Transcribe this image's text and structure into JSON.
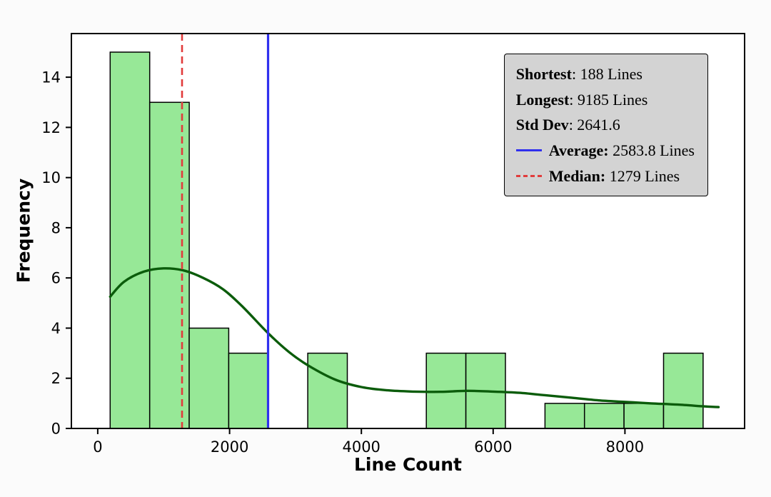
{
  "chart_data": {
    "type": "bar",
    "subtype": "histogram-with-kde",
    "title": "",
    "xlabel": "Line Count",
    "ylabel": "Frequency",
    "xlim": [
      -400,
      9815
    ],
    "ylim": [
      0,
      15.74
    ],
    "x_ticks": [
      0,
      2000,
      4000,
      6000,
      8000
    ],
    "y_ticks": [
      0,
      2,
      4,
      6,
      8,
      10,
      12,
      14
    ],
    "grid": false,
    "legend_position": "upper right",
    "bin_edges": [
      188.0,
      787.8,
      1387.6,
      1987.4,
      2587.2,
      3187.0,
      3786.8,
      4386.6,
      4986.4,
      5586.2,
      6186.0,
      6785.8,
      7385.6,
      7985.4,
      8585.2,
      9185.0
    ],
    "counts": [
      15,
      13,
      4,
      3,
      0,
      3,
      0,
      0,
      3,
      3,
      0,
      1,
      1,
      1,
      3
    ],
    "bar_fill": "#97e897",
    "bar_edge": "#000000",
    "kde_color": "#0b5c0b",
    "kde_points": [
      [
        188,
        5.25
      ],
      [
        400,
        5.85
      ],
      [
        700,
        6.25
      ],
      [
        1000,
        6.38
      ],
      [
        1300,
        6.3
      ],
      [
        1600,
        6.0
      ],
      [
        1900,
        5.55
      ],
      [
        2200,
        4.85
      ],
      [
        2584,
        3.8
      ],
      [
        2900,
        3.05
      ],
      [
        3200,
        2.5
      ],
      [
        3600,
        1.95
      ],
      [
        4000,
        1.65
      ],
      [
        4400,
        1.52
      ],
      [
        4800,
        1.47
      ],
      [
        5200,
        1.46
      ],
      [
        5600,
        1.5
      ],
      [
        6000,
        1.47
      ],
      [
        6400,
        1.42
      ],
      [
        6800,
        1.32
      ],
      [
        7200,
        1.22
      ],
      [
        7600,
        1.12
      ],
      [
        8000,
        1.06
      ],
      [
        8400,
        1.0
      ],
      [
        8800,
        0.95
      ],
      [
        9200,
        0.88
      ],
      [
        9420,
        0.85
      ]
    ],
    "average": {
      "value": 2583.8,
      "color": "#3030ee"
    },
    "median": {
      "value": 1279,
      "color": "#e13c3c"
    },
    "stats": {
      "shortest_lines": 188,
      "longest_lines": 9185,
      "std_dev": 2641.6,
      "average_lines": 2583.8,
      "median_lines": 1279
    }
  },
  "legend": {
    "background": "#d3d3d3",
    "border_color": "#000000",
    "entries": [
      {
        "bold": "Shortest",
        "rest": ": 188 Lines",
        "swatch": null
      },
      {
        "bold": "Longest",
        "rest": ": 9185 Lines",
        "swatch": null
      },
      {
        "bold": "Std Dev",
        "rest": ": 2641.6",
        "swatch": null
      },
      {
        "bold": "Average:",
        "rest": " 2583.8 Lines",
        "swatch": {
          "style": "solid",
          "color": "#3030ee",
          "name": "average-line-swatch"
        }
      },
      {
        "bold": "Median:",
        "rest": " 1279 Lines",
        "swatch": {
          "style": "dashed",
          "color": "#e13c3c",
          "name": "median-line-swatch"
        }
      }
    ]
  }
}
